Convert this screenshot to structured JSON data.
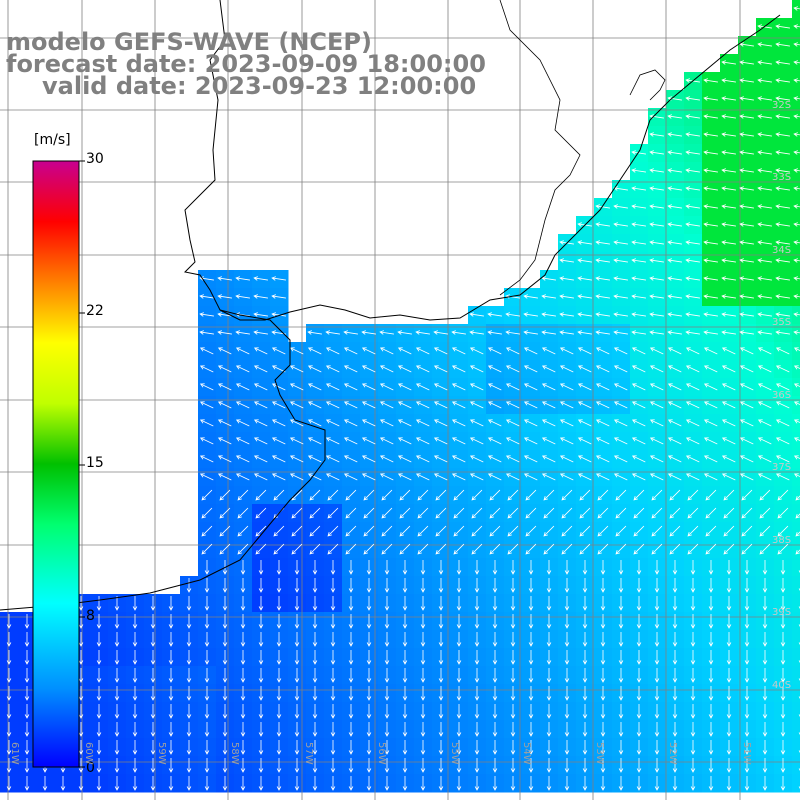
{
  "title": {
    "line1": "modelo GEFS-WAVE (NCEP)",
    "line2": "forecast date: 2023-09-09 18:00:00",
    "line3": "valid date: 2023-09-23 12:00:00"
  },
  "colorbar": {
    "unit": "[m/s]",
    "ticks": [
      "30",
      "22",
      "15",
      "8",
      "0"
    ],
    "tick_values": [
      30,
      22,
      15,
      8,
      0
    ],
    "range": [
      0,
      30
    ],
    "colors": [
      "#0000ff",
      "#0090ff",
      "#00e8ff",
      "#00ff80",
      "#00d000",
      "#b8ff00",
      "#ffff00",
      "#ff8000",
      "#ff0000",
      "#cc0080"
    ]
  },
  "map": {
    "land_color": "#ffffff",
    "grid_color": "#808080",
    "arrow_color": "#ffffff",
    "lat_labels": [
      "32S",
      "33S",
      "34S",
      "35S",
      "36S",
      "37S",
      "38S",
      "39S",
      "40S"
    ],
    "lon_labels": [
      "61W",
      "60W",
      "59W",
      "58W",
      "57W",
      "56W",
      "55W",
      "54W",
      "53W",
      "52W",
      "51W"
    ]
  }
}
